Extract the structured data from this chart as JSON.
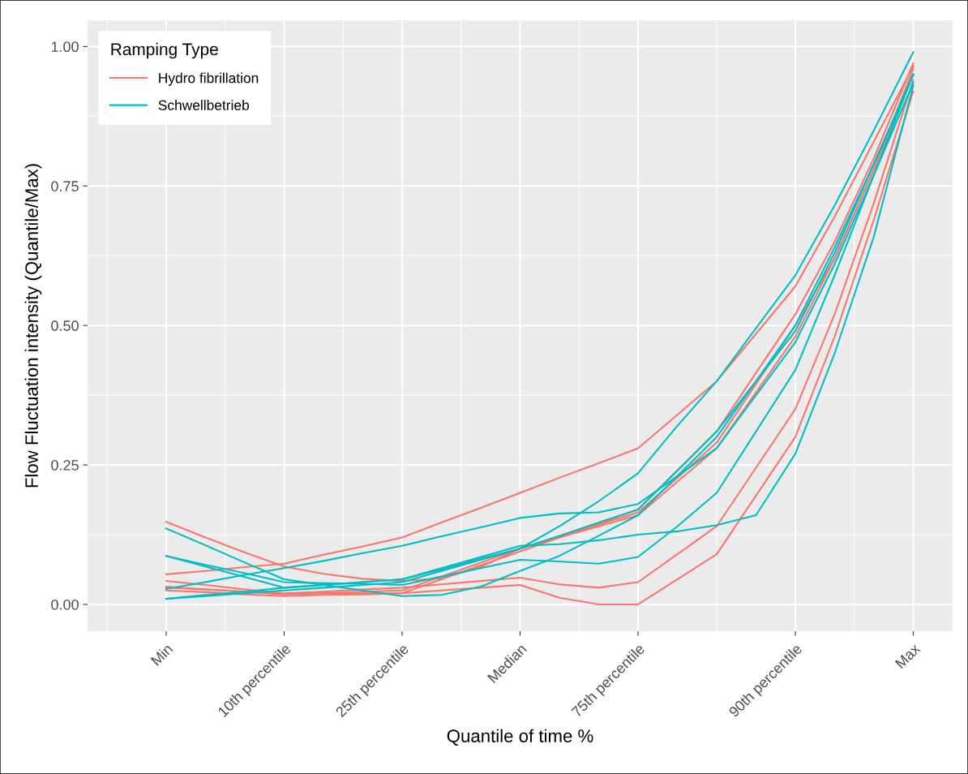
{
  "chart_data": {
    "type": "line",
    "xlabel": "Quantile of time %",
    "ylabel": "Flow Fluctuation intensity (Quantile/Max)",
    "legend_title": "Ramping Type",
    "legend": "top left",
    "grid": true,
    "line_style": "solid",
    "marker": "none",
    "categories": [
      "Min",
      null,
      null,
      "10th percentile",
      null,
      null,
      "25th percentile",
      null,
      null,
      "Median",
      null,
      null,
      "75th percentile",
      null,
      null,
      null,
      "90th percentile",
      null,
      null,
      "Max"
    ],
    "ylim": [
      -0.048,
      1.047
    ],
    "yticks": [
      {
        "value": 0,
        "label": "0.00"
      },
      {
        "value": 0.25,
        "label": "0.25"
      },
      {
        "value": 0.5,
        "label": "0.50"
      },
      {
        "value": 0.75,
        "label": "0.75"
      },
      {
        "value": 1,
        "label": "1.00"
      }
    ],
    "series": [
      {
        "name": "Hydro fibrillation",
        "color": "#f8766d",
        "values": [
          0.054,
          0.06,
          0.067,
          0.073,
          0.089,
          0.104,
          0.12,
          0.147,
          0.173,
          0.2,
          0.227,
          0.253,
          0.28,
          0.34,
          0.4,
          0.485,
          0.57,
          0.695,
          0.83,
          0.965
        ]
      },
      {
        "color": "#f8766d",
        "values": [
          0.148,
          0.12,
          0.093,
          0.068,
          0.055,
          0.046,
          0.042,
          0.047,
          0.067,
          0.1,
          0.122,
          0.143,
          0.165,
          0.227,
          0.29,
          0.395,
          0.5,
          0.62,
          0.78,
          0.95
        ]
      },
      {
        "color": "#f8766d",
        "values": [
          0.042,
          0.035,
          0.027,
          0.02,
          0.02,
          0.02,
          0.02,
          0.045,
          0.07,
          0.095,
          0.12,
          0.145,
          0.17,
          0.24,
          0.31,
          0.415,
          0.52,
          0.65,
          0.8,
          0.97
        ]
      },
      {
        "color": "#f8766d",
        "values": [
          0.032,
          0.027,
          0.023,
          0.018,
          0.02,
          0.023,
          0.025,
          0.05,
          0.075,
          0.1,
          0.12,
          0.14,
          0.16,
          0.22,
          0.28,
          0.38,
          0.48,
          0.62,
          0.78,
          0.96
        ]
      },
      {
        "color": "#f8766d",
        "values": [
          0.03,
          0.027,
          0.023,
          0.02,
          0.023,
          0.027,
          0.03,
          0.036,
          0.042,
          0.048,
          0.036,
          0.03,
          0.04,
          0.09,
          0.14,
          0.245,
          0.35,
          0.52,
          0.72,
          0.94
        ]
      },
      {
        "color": "#f8766d",
        "values": [
          0.025,
          0.022,
          0.018,
          0.015,
          0.017,
          0.018,
          0.02,
          0.025,
          0.03,
          0.035,
          0.012,
          0,
          0,
          0.045,
          0.09,
          0.195,
          0.3,
          0.48,
          0.69,
          0.92
        ]
      },
      {
        "name": "Schwellbetrieb",
        "color": "#00bfc4",
        "values": [
          0.01,
          0.017,
          0.023,
          0.03,
          0.035,
          0.04,
          0.045,
          0.063,
          0.082,
          0.1,
          0.14,
          0.185,
          0.235,
          0.32,
          0.4,
          0.495,
          0.59,
          0.715,
          0.85,
          0.99
        ]
      },
      {
        "color": "#00bfc4",
        "values": [
          0.028,
          0.04,
          0.053,
          0.065,
          0.078,
          0.092,
          0.105,
          0.122,
          0.138,
          0.155,
          0.163,
          0.165,
          0.18,
          0.23,
          0.28,
          0.375,
          0.47,
          0.61,
          0.77,
          0.95
        ]
      },
      {
        "color": "#00bfc4",
        "values": [
          0.136,
          0.106,
          0.075,
          0.045,
          0.035,
          0.025,
          0.015,
          0.017,
          0.032,
          0.06,
          0.087,
          0.123,
          0.16,
          0.23,
          0.3,
          0.4,
          0.5,
          0.64,
          0.79,
          0.95
        ]
      },
      {
        "color": "#00bfc4",
        "values": [
          0.087,
          0.071,
          0.056,
          0.04,
          0.038,
          0.037,
          0.035,
          0.05,
          0.065,
          0.08,
          0.077,
          0.073,
          0.085,
          0.14,
          0.2,
          0.31,
          0.42,
          0.59,
          0.77,
          0.935
        ]
      },
      {
        "color": "#00bfc4",
        "values": [
          0.087,
          0.068,
          0.049,
          0.03,
          0.035,
          0.04,
          0.045,
          0.065,
          0.085,
          0.105,
          0.108,
          0.115,
          0.125,
          0.131,
          0.142,
          0.16,
          0.27,
          0.45,
          0.66,
          0.93
        ]
      },
      {
        "color": "#00bfc4",
        "values": [
          0.01,
          0.015,
          0.02,
          0.025,
          0.03,
          0.035,
          0.04,
          0.06,
          0.08,
          0.1,
          0.123,
          0.147,
          0.17,
          0.24,
          0.31,
          0.4,
          0.49,
          0.63,
          0.79,
          0.95
        ]
      }
    ]
  }
}
